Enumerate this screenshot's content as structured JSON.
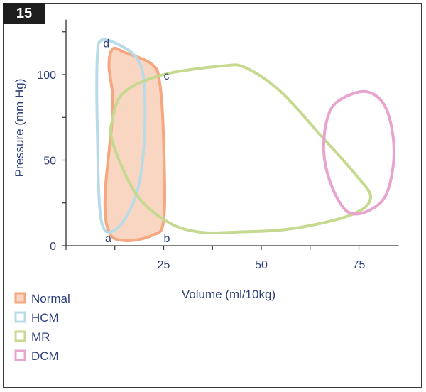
{
  "figure": {
    "badge": "15"
  },
  "chart_data": {
    "type": "line",
    "xlabel": "Volume (ml/10kg)",
    "ylabel": "Pressure (mm Hg)",
    "x_ticks": [
      "25",
      "50",
      "75"
    ],
    "y_ticks": [
      "0",
      "50",
      "100"
    ],
    "xlim": [
      0,
      85
    ],
    "ylim": [
      0,
      130
    ],
    "legend_position": "bottom-left",
    "series": [
      {
        "name": "Normal",
        "color": "#f5a77f",
        "fill": "#f9d6c2",
        "closed": true,
        "points": [
          [
            12,
            115
          ],
          [
            15,
            113
          ],
          [
            22,
            106
          ],
          [
            24,
            95
          ],
          [
            25,
            60
          ],
          [
            25,
            15
          ],
          [
            22,
            6
          ],
          [
            15,
            3
          ],
          [
            11,
            8
          ],
          [
            10,
            30
          ],
          [
            12,
            80
          ],
          [
            11,
            105
          ]
        ]
      },
      {
        "name": "HCM",
        "color": "#b9dbe8",
        "closed": true,
        "points": [
          [
            9,
            120
          ],
          [
            13,
            118
          ],
          [
            18,
            110
          ],
          [
            20,
            95
          ],
          [
            20,
            60
          ],
          [
            18,
            30
          ],
          [
            13,
            10
          ],
          [
            9,
            15
          ],
          [
            8,
            70
          ],
          [
            8,
            110
          ]
        ]
      },
      {
        "name": "MR",
        "color": "#c6d991",
        "closed": true,
        "points": [
          [
            15,
            90
          ],
          [
            25,
            100
          ],
          [
            40,
            105
          ],
          [
            46,
            104
          ],
          [
            55,
            90
          ],
          [
            65,
            65
          ],
          [
            74,
            42
          ],
          [
            78,
            28
          ],
          [
            73,
            18
          ],
          [
            58,
            10
          ],
          [
            44,
            8
          ],
          [
            34,
            8
          ],
          [
            26,
            14
          ],
          [
            18,
            30
          ],
          [
            12,
            60
          ],
          [
            12,
            75
          ]
        ]
      },
      {
        "name": "DCM",
        "color": "#e8a4cf",
        "closed": true,
        "points": [
          [
            70,
            85
          ],
          [
            77,
            90
          ],
          [
            82,
            80
          ],
          [
            84,
            55
          ],
          [
            82,
            30
          ],
          [
            77,
            20
          ],
          [
            72,
            20
          ],
          [
            68,
            35
          ],
          [
            66,
            55
          ],
          [
            67,
            75
          ]
        ]
      }
    ],
    "annotations": [
      {
        "text": "d",
        "x": 9.5,
        "y": 116
      },
      {
        "text": "c",
        "x": 25,
        "y": 97
      },
      {
        "text": "a",
        "x": 10,
        "y": 2
      },
      {
        "text": "b",
        "x": 25,
        "y": 2
      }
    ]
  }
}
